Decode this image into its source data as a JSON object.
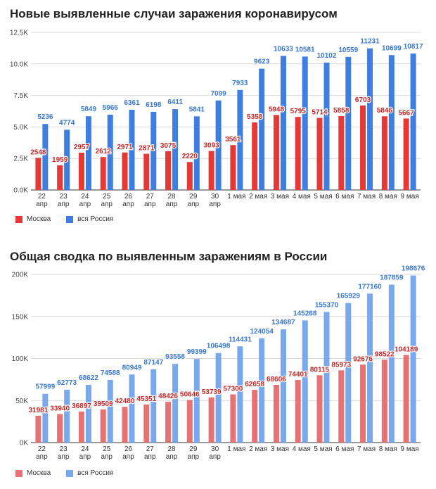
{
  "chart_data": [
    {
      "type": "bar",
      "title": "Новые выявленные случаи заражения коронавирусом",
      "categories": [
        [
          "22",
          "апр"
        ],
        [
          "23",
          "апр"
        ],
        [
          "24",
          "апр"
        ],
        [
          "25",
          "апр"
        ],
        [
          "26",
          "апр"
        ],
        [
          "27",
          "апр"
        ],
        [
          "28",
          "апр"
        ],
        [
          "29",
          "апр"
        ],
        [
          "30",
          "апр"
        ],
        [
          "1 мая"
        ],
        [
          "2 мая"
        ],
        [
          "3 мая"
        ],
        [
          "4 мая"
        ],
        [
          "5 мая"
        ],
        [
          "6 мая"
        ],
        [
          "7 мая"
        ],
        [
          "8 мая"
        ],
        [
          "9 мая"
        ]
      ],
      "yticks": [
        0,
        2500,
        5000,
        7500,
        10000,
        12500
      ],
      "ytick_labels": [
        "0.0K",
        "2.5K",
        "5.0K",
        "7.5K",
        "10.0K",
        "12.5K"
      ],
      "ylim": [
        0,
        12500
      ],
      "grid": true,
      "legend_position": "bottom-left",
      "series": [
        {
          "name": "Москва",
          "color": "#e53935",
          "label_color": "#c62828",
          "values": [
            2548,
            1959,
            2957,
            2612,
            2971,
            2871,
            3075,
            2220,
            3093,
            3561,
            5358,
            5948,
            5795,
            5714,
            5858,
            6703,
            5846,
            5667
          ]
        },
        {
          "name": "вся Россия",
          "color": "#3d7ee0",
          "label_color": "#3a78d2",
          "values": [
            5236,
            4774,
            5849,
            5966,
            6361,
            6198,
            6411,
            5841,
            7099,
            7933,
            9623,
            10633,
            10581,
            10102,
            10559,
            11231,
            10699,
            10817
          ]
        }
      ]
    },
    {
      "type": "bar",
      "title": "Общая сводка по выявленным заражениям в России",
      "categories": [
        [
          "22",
          "апр"
        ],
        [
          "23",
          "апр"
        ],
        [
          "24",
          "апр"
        ],
        [
          "25",
          "апр"
        ],
        [
          "26",
          "апр"
        ],
        [
          "27",
          "апр"
        ],
        [
          "28",
          "апр"
        ],
        [
          "29",
          "апр"
        ],
        [
          "30",
          "апр"
        ],
        [
          "1 мая"
        ],
        [
          "2 мая"
        ],
        [
          "3 мая"
        ],
        [
          "4 мая"
        ],
        [
          "5 мая"
        ],
        [
          "6 мая"
        ],
        [
          "7 мая"
        ],
        [
          "8 мая"
        ],
        [
          "9 мая"
        ]
      ],
      "yticks": [
        0,
        50000,
        100000,
        150000,
        200000
      ],
      "ytick_labels": [
        "0K",
        "50K",
        "100K",
        "150K",
        "200K"
      ],
      "ylim": [
        0,
        200000
      ],
      "grid": true,
      "legend_position": "bottom-left",
      "series": [
        {
          "name": "Москва",
          "color": "#e57373",
          "label_color": "#c62828",
          "values": [
            31981,
            33940,
            36897,
            39509,
            42480,
            45351,
            48426,
            50646,
            53739,
            57300,
            62658,
            68606,
            74401,
            80115,
            85973,
            92676,
            98522,
            104189
          ],
          "labels": [
            "31981",
            "33940",
            "36897",
            "39509",
            "42480",
            "45351",
            "48426",
            "50646",
            "53739",
            "57300",
            "62658",
            "68606",
            "74401",
            "80115",
            "85973",
            "92676",
            "98522",
            "104189"
          ]
        },
        {
          "name": "вся Россия",
          "color": "#7aa8ec",
          "label_color": "#3a78d2",
          "values": [
            57999,
            62773,
            68622,
            74588,
            80949,
            87147,
            93558,
            99399,
            106498,
            114431,
            124054,
            134687,
            145268,
            155370,
            165929,
            177160,
            187859,
            198676
          ]
        }
      ]
    }
  ]
}
